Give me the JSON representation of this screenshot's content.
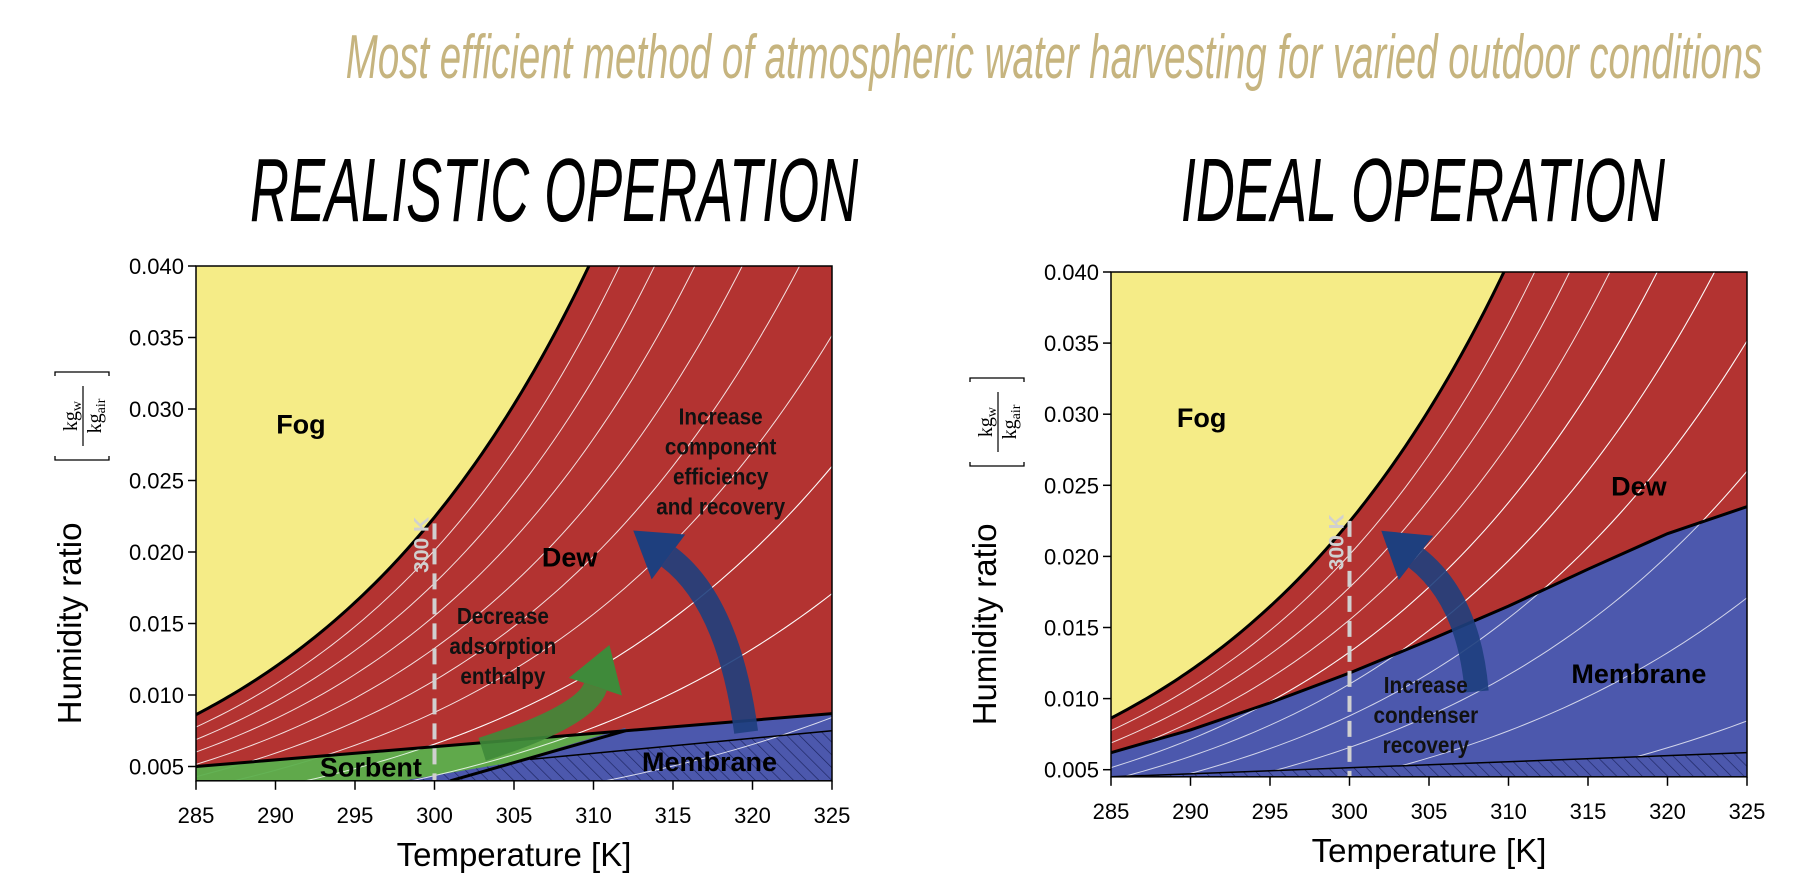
{
  "title": "Most efficient method of atmospheric water harvesting for varied outdoor conditions",
  "colors": {
    "title": "#c6b47f",
    "fog": "#f5ec87",
    "dew": "#b33331",
    "membrane": "#4c58ad",
    "sorbent": "#5cb04d",
    "arrow_blue": "#1e3f7e",
    "arrow_green": "#3f8a3a",
    "dashed": "#d0d0d0"
  },
  "chart_data": [
    {
      "type": "area",
      "title": "REALISTIC OPERATION",
      "xlabel": "Temperature [K]",
      "ylabel": "Humidity ratio",
      "ylabel_unit": {
        "num": "kg",
        "num_sub": "w",
        "den": "kg",
        "den_sub": "air"
      },
      "xlim": [
        285,
        325
      ],
      "ylim": [
        0.004,
        0.04
      ],
      "xticks": [
        "285",
        "290",
        "295",
        "300",
        "305",
        "310",
        "315",
        "320",
        "325"
      ],
      "yticks": [
        "0.005",
        "0.010",
        "0.015",
        "0.020",
        "0.025",
        "0.030",
        "0.035",
        "0.040"
      ],
      "rh_lines": [
        0.9,
        0.8,
        0.7,
        0.6,
        0.5,
        0.4,
        0.3,
        0.2,
        0.1
      ],
      "regions": {
        "sorbent_upper": [
          [
            285,
            0.005
          ],
          [
            325,
            0.0087
          ]
        ],
        "membrane_left": [
          [
            301,
            0.004
          ],
          [
            312,
            0.0077
          ]
        ],
        "hatch_top": [
          [
            306,
            0.0055
          ],
          [
            325,
            0.0075
          ]
        ]
      },
      "marker_line": {
        "x": 300,
        "label": "300 K",
        "y_top": 0.022
      },
      "labels": [
        {
          "text": "Fog",
          "x": 291.6,
          "y": 0.0288
        },
        {
          "text": "Dew",
          "x": 308.5,
          "y": 0.0195
        },
        {
          "text": "Sorbent",
          "x": 296,
          "y": 0.0048
        },
        {
          "text": "Membrane",
          "x": 317.3,
          "y": 0.0052
        }
      ],
      "annotations": [
        {
          "lines": [
            "Decrease",
            "adsorption",
            "enthalpy"
          ],
          "x": 304.3,
          "y": 0.0133
        },
        {
          "lines": [
            "Increase",
            "component",
            "efficiency",
            "and recovery"
          ],
          "x": 318,
          "y": 0.0262
        }
      ],
      "arrows": [
        {
          "color": "green",
          "from": [
            303,
            0.0062
          ],
          "ctrl": [
            309.5,
            0.0085
          ],
          "to": [
            311,
            0.0135
          ]
        },
        {
          "color": "blue",
          "from": [
            319.6,
            0.0074
          ],
          "ctrl": [
            318.5,
            0.0165
          ],
          "to": [
            312.5,
            0.0215
          ]
        }
      ]
    },
    {
      "type": "area",
      "title": "IDEAL OPERATION",
      "xlabel": "Temperature [K]",
      "ylabel": "Humidity ratio",
      "ylabel_unit": {
        "num": "kg",
        "num_sub": "w",
        "den": "kg",
        "den_sub": "air"
      },
      "xlim": [
        285,
        325
      ],
      "ylim": [
        0.0045,
        0.04
      ],
      "xticks": [
        "285",
        "290",
        "295",
        "300",
        "305",
        "310",
        "315",
        "320",
        "325"
      ],
      "yticks": [
        "0.005",
        "0.010",
        "0.015",
        "0.020",
        "0.025",
        "0.030",
        "0.035",
        "0.040"
      ],
      "rh_lines": [
        0.9,
        0.8,
        0.7,
        0.6,
        0.5,
        0.4,
        0.3,
        0.2,
        0.1
      ],
      "regions": {
        "membrane_upper": [
          [
            285,
            0.0062
          ],
          [
            290,
            0.0078
          ],
          [
            295,
            0.0097
          ],
          [
            300,
            0.0118
          ],
          [
            305,
            0.0141
          ],
          [
            310,
            0.0165
          ],
          [
            315,
            0.0191
          ],
          [
            320,
            0.0216
          ],
          [
            325,
            0.0235
          ]
        ],
        "hatch_top": [
          [
            285,
            0.0045
          ],
          [
            325,
            0.0062
          ]
        ]
      },
      "marker_line": {
        "x": 300,
        "label": "300 K",
        "y_top": 0.0225
      },
      "labels": [
        {
          "text": "Fog",
          "x": 290.7,
          "y": 0.0296
        },
        {
          "text": "Dew",
          "x": 318.2,
          "y": 0.0248
        },
        {
          "text": "Membrane",
          "x": 318.2,
          "y": 0.0116
        }
      ],
      "annotations": [
        {
          "lines": [
            "Increase",
            "condenser",
            "recovery"
          ],
          "x": 304.8,
          "y": 0.0087
        }
      ],
      "arrows": [
        {
          "color": "blue",
          "from": [
            308,
            0.0105
          ],
          "ctrl": [
            307.5,
            0.017
          ],
          "to": [
            302,
            0.0218
          ]
        }
      ]
    }
  ]
}
